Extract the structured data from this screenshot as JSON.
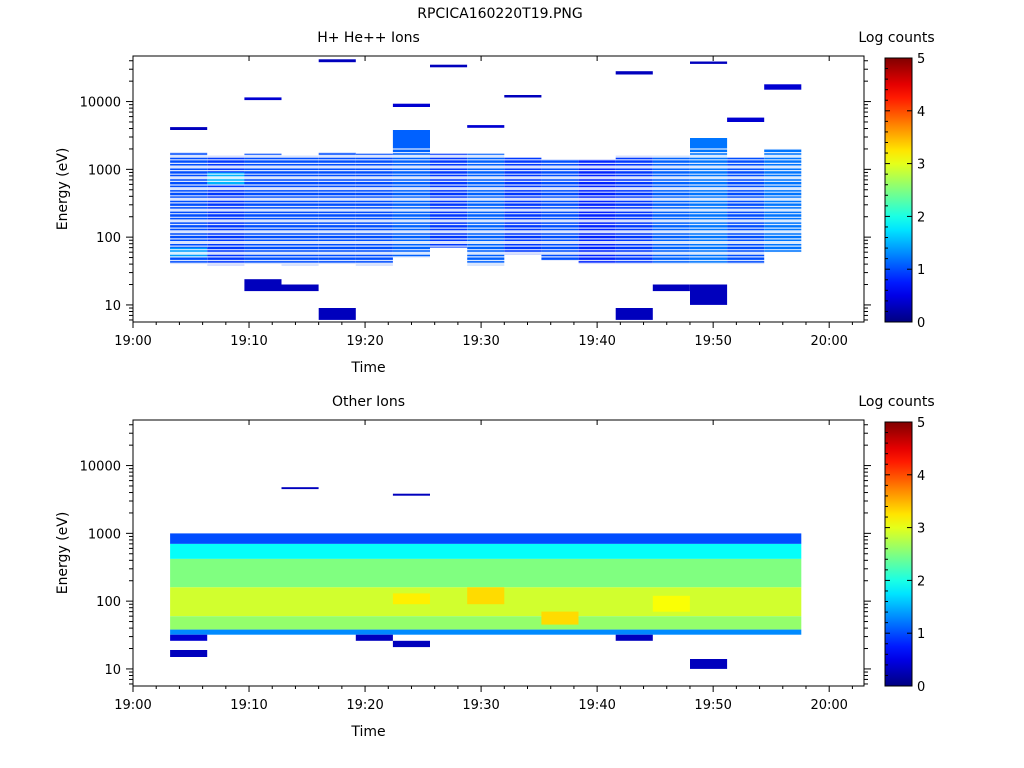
{
  "page": {
    "title": "RPCICA160220T19.PNG"
  },
  "chart_data": [
    {
      "type": "heatmap",
      "title": "H+ He++ Ions",
      "xlabel": "Time",
      "ylabel": "Energy (eV)",
      "colorbar_label": "Log counts",
      "colorbar_ticks": [
        "0",
        "1",
        "2",
        "3",
        "4",
        "5"
      ],
      "xlim": [
        0,
        63
      ],
      "x_ticks": [
        "19:00",
        "19:10",
        "19:20",
        "19:30",
        "19:40",
        "19:50",
        "20:00"
      ],
      "y_scale": "log",
      "ylim": [
        5.6,
        47000
      ],
      "y_ticks": [
        "10",
        "100",
        "1000",
        "10000"
      ],
      "time_bins": [
        3.2,
        6.4,
        9.6,
        12.8,
        16.0,
        19.2,
        22.4,
        25.6,
        28.8,
        32.0,
        35.2,
        38.4,
        41.6,
        44.8,
        48.0,
        51.2,
        54.4,
        57.6
      ],
      "cells": [
        {
          "t0": 3.2,
          "t1": 6.4,
          "e0": 40,
          "e1": 1800,
          "level": 1.0
        },
        {
          "t0": 3.2,
          "t1": 6.4,
          "e0": 3800,
          "e1": 4200,
          "level": 0.3
        },
        {
          "t0": 3.2,
          "t1": 6.4,
          "e0": 50,
          "e1": 70,
          "level": 1.4
        },
        {
          "t0": 6.4,
          "t1": 9.6,
          "e0": 38,
          "e1": 1600,
          "level": 0.9
        },
        {
          "t0": 6.4,
          "t1": 9.6,
          "e0": 600,
          "e1": 900,
          "level": 1.5
        },
        {
          "t0": 9.6,
          "t1": 12.8,
          "e0": 40,
          "e1": 1700,
          "level": 1.0
        },
        {
          "t0": 9.6,
          "t1": 12.8,
          "e0": 16,
          "e1": 24,
          "level": 0.3
        },
        {
          "t0": 9.6,
          "t1": 12.8,
          "e0": 10500,
          "e1": 11500,
          "level": 0.4
        },
        {
          "t0": 12.8,
          "t1": 16.0,
          "e0": 38,
          "e1": 1600,
          "level": 1.0
        },
        {
          "t0": 12.8,
          "t1": 16.0,
          "e0": 16,
          "e1": 20,
          "level": 0.3
        },
        {
          "t0": 16.0,
          "t1": 19.2,
          "e0": 40,
          "e1": 1800,
          "level": 1.0
        },
        {
          "t0": 16.0,
          "t1": 19.2,
          "e0": 6,
          "e1": 9,
          "level": 0.3
        },
        {
          "t0": 16.0,
          "t1": 19.2,
          "e0": 38000,
          "e1": 42000,
          "level": 0.3
        },
        {
          "t0": 19.2,
          "t1": 22.4,
          "e0": 38,
          "e1": 1700,
          "level": 1.0
        },
        {
          "t0": 22.4,
          "t1": 25.6,
          "e0": 50,
          "e1": 3800,
          "level": 1.1
        },
        {
          "t0": 22.4,
          "t1": 25.6,
          "e0": 8300,
          "e1": 9300,
          "level": 0.4
        },
        {
          "t0": 25.6,
          "t1": 28.8,
          "e0": 70,
          "e1": 1700,
          "level": 0.9
        },
        {
          "t0": 25.6,
          "t1": 28.8,
          "e0": 32000,
          "e1": 35000,
          "level": 0.3
        },
        {
          "t0": 28.8,
          "t1": 32.0,
          "e0": 38,
          "e1": 1700,
          "level": 1.1
        },
        {
          "t0": 28.8,
          "t1": 32.0,
          "e0": 4100,
          "e1": 4500,
          "level": 0.4
        },
        {
          "t0": 32.0,
          "t1": 35.2,
          "e0": 55,
          "e1": 1500,
          "level": 0.9
        },
        {
          "t0": 32.0,
          "t1": 35.2,
          "e0": 11500,
          "e1": 12500,
          "level": 0.3
        },
        {
          "t0": 35.2,
          "t1": 38.4,
          "e0": 45,
          "e1": 1400,
          "level": 1.0
        },
        {
          "t0": 38.4,
          "t1": 41.6,
          "e0": 40,
          "e1": 1400,
          "level": 0.8
        },
        {
          "t0": 41.6,
          "t1": 44.8,
          "e0": 40,
          "e1": 1600,
          "level": 0.9
        },
        {
          "t0": 41.6,
          "t1": 44.8,
          "e0": 6,
          "e1": 9,
          "level": 0.3
        },
        {
          "t0": 41.6,
          "t1": 44.8,
          "e0": 25000,
          "e1": 28000,
          "level": 0.3
        },
        {
          "t0": 44.8,
          "t1": 48.0,
          "e0": 40,
          "e1": 1600,
          "level": 1.1
        },
        {
          "t0": 44.8,
          "t1": 48.0,
          "e0": 16,
          "e1": 20,
          "level": 0.3
        },
        {
          "t0": 48.0,
          "t1": 51.2,
          "e0": 40,
          "e1": 2900,
          "level": 1.2
        },
        {
          "t0": 48.0,
          "t1": 51.2,
          "e0": 10,
          "e1": 20,
          "level": 0.3
        },
        {
          "t0": 48.0,
          "t1": 51.2,
          "e0": 36000,
          "e1": 39000,
          "level": 0.3
        },
        {
          "t0": 51.2,
          "t1": 54.4,
          "e0": 40,
          "e1": 1500,
          "level": 1.0
        },
        {
          "t0": 51.2,
          "t1": 54.4,
          "e0": 5000,
          "e1": 5800,
          "level": 0.4
        },
        {
          "t0": 54.4,
          "t1": 57.6,
          "e0": 60,
          "e1": 2000,
          "level": 1.2
        },
        {
          "t0": 54.4,
          "t1": 57.6,
          "e0": 15000,
          "e1": 18000,
          "level": 0.4
        }
      ]
    },
    {
      "type": "heatmap",
      "title": "Other Ions",
      "xlabel": "Time",
      "ylabel": "Energy (eV)",
      "colorbar_label": "Log counts",
      "colorbar_ticks": [
        "0",
        "1",
        "2",
        "3",
        "4",
        "5"
      ],
      "xlim": [
        0,
        63
      ],
      "x_ticks": [
        "19:00",
        "19:10",
        "19:20",
        "19:30",
        "19:40",
        "19:50",
        "20:00"
      ],
      "y_scale": "log",
      "ylim": [
        5.6,
        47000
      ],
      "y_ticks": [
        "10",
        "100",
        "1000",
        "10000"
      ],
      "time_bins": [
        3.2,
        6.4,
        9.6,
        12.8,
        16.0,
        19.2,
        22.4,
        25.6,
        28.8,
        32.0,
        35.2,
        38.4,
        41.6,
        44.8,
        48.0,
        51.2,
        54.4,
        57.6
      ],
      "cells": [
        {
          "t0": 3.2,
          "t1": 57.6,
          "e0": 700,
          "e1": 1000,
          "level": 1.0
        },
        {
          "t0": 3.2,
          "t1": 57.6,
          "e0": 420,
          "e1": 700,
          "level": 1.9
        },
        {
          "t0": 3.2,
          "t1": 57.6,
          "e0": 160,
          "e1": 420,
          "level": 2.5
        },
        {
          "t0": 3.2,
          "t1": 57.6,
          "e0": 60,
          "e1": 160,
          "level": 2.9
        },
        {
          "t0": 3.2,
          "t1": 57.6,
          "e0": 38,
          "e1": 60,
          "level": 2.6
        },
        {
          "t0": 3.2,
          "t1": 57.6,
          "e0": 32,
          "e1": 38,
          "level": 1.3
        },
        {
          "t0": 28.8,
          "t1": 32.0,
          "e0": 90,
          "e1": 160,
          "level": 3.3
        },
        {
          "t0": 22.4,
          "t1": 25.6,
          "e0": 90,
          "e1": 130,
          "level": 3.2
        },
        {
          "t0": 35.2,
          "t1": 38.4,
          "e0": 45,
          "e1": 70,
          "level": 3.3
        },
        {
          "t0": 44.8,
          "t1": 48.0,
          "e0": 70,
          "e1": 120,
          "level": 3.1
        },
        {
          "t0": 3.2,
          "t1": 6.4,
          "e0": 26,
          "e1": 32,
          "level": 0.4
        },
        {
          "t0": 3.2,
          "t1": 6.4,
          "e0": 15,
          "e1": 19,
          "level": 0.3
        },
        {
          "t0": 19.2,
          "t1": 22.4,
          "e0": 26,
          "e1": 32,
          "level": 0.3
        },
        {
          "t0": 22.4,
          "t1": 25.6,
          "e0": 21,
          "e1": 26,
          "level": 0.3
        },
        {
          "t0": 41.6,
          "t1": 44.8,
          "e0": 26,
          "e1": 32,
          "level": 0.3
        },
        {
          "t0": 48.0,
          "t1": 51.2,
          "e0": 10,
          "e1": 14,
          "level": 0.3
        },
        {
          "t0": 12.8,
          "t1": 16.0,
          "e0": 4500,
          "e1": 4800,
          "level": 0.3
        },
        {
          "t0": 22.4,
          "t1": 25.6,
          "e0": 3600,
          "e1": 3850,
          "level": 0.3
        }
      ]
    }
  ]
}
